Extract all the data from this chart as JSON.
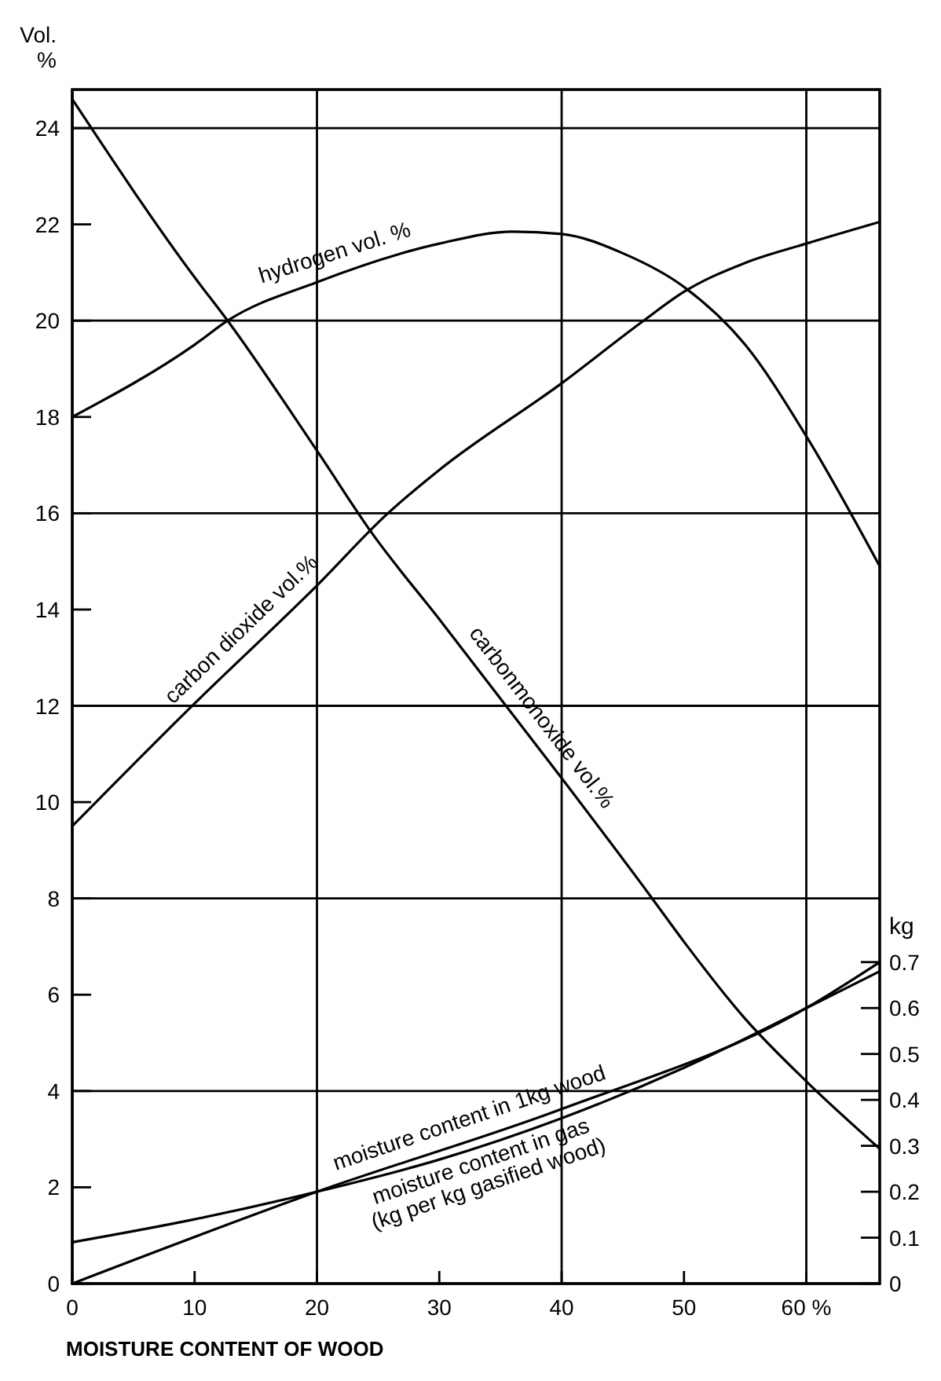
{
  "chart_data": {
    "type": "line",
    "xlabel": "MOISTURE CONTENT OF WOOD",
    "ylabel": "Vol. %",
    "y2label": "kg",
    "xlim": [
      0,
      66
    ],
    "xticks": [
      0,
      10,
      20,
      30,
      40,
      50,
      {
        "value": 60,
        "label": "60 %"
      }
    ],
    "ylim": [
      0,
      24.8
    ],
    "yticks": [
      0,
      2,
      4,
      6,
      8,
      10,
      12,
      14,
      16,
      18,
      20,
      22,
      24
    ],
    "y2lim": [
      0,
      2.6
    ],
    "y2ticks": [
      0,
      0.1,
      0.2,
      0.3,
      0.4,
      0.5,
      0.6,
      0.7
    ],
    "grid": true,
    "marker": "none",
    "line_style": "solid",
    "series": [
      {
        "name": "hydrogen vol. %",
        "color": "#000000",
        "x": [
          0,
          10,
          12.7,
          20,
          30,
          36,
          40,
          45,
          50,
          55,
          60,
          66
        ],
        "values": [
          18,
          19.5,
          20,
          20.8,
          21.6,
          21.85,
          21.8,
          21.4,
          20.7,
          19.5,
          17.6,
          14.9
        ]
      },
      {
        "name": "carbon dioxide vol.%",
        "color": "#000000",
        "x": [
          0,
          9.4,
          20,
          25.8,
          30,
          40,
          46.7,
          50,
          55,
          60,
          66
        ],
        "values": [
          9.5,
          11.9,
          14.5,
          16,
          16.9,
          18.7,
          20,
          20.6,
          21.2,
          21.6,
          22.05
        ]
      },
      {
        "name": "carbonmonoxide vol.%",
        "color": "#000000",
        "x": [
          0,
          10,
          12.7,
          20,
          24.6,
          30,
          40,
          47.4,
          50,
          55,
          60,
          66
        ],
        "values": [
          24.6,
          20.9,
          20,
          17.3,
          15.55,
          13.8,
          10.5,
          8,
          7.1,
          5.5,
          4.2,
          2.8
        ]
      },
      {
        "name": "moisture content in 1kg wood",
        "color": "#000000",
        "axis": "y2",
        "x": [
          0,
          20,
          40,
          60,
          66
        ],
        "values": [
          0,
          0.2,
          0.38,
          0.6,
          0.7
        ]
      },
      {
        "name": "moisture content in gas (kg per kg gasified wood)",
        "color": "#000000",
        "axis": "y2",
        "x": [
          0,
          10,
          20,
          30,
          40,
          50,
          60,
          66
        ],
        "values": [
          0.09,
          0.14,
          0.2,
          0.27,
          0.36,
          0.47,
          0.6,
          0.68
        ]
      }
    ]
  }
}
